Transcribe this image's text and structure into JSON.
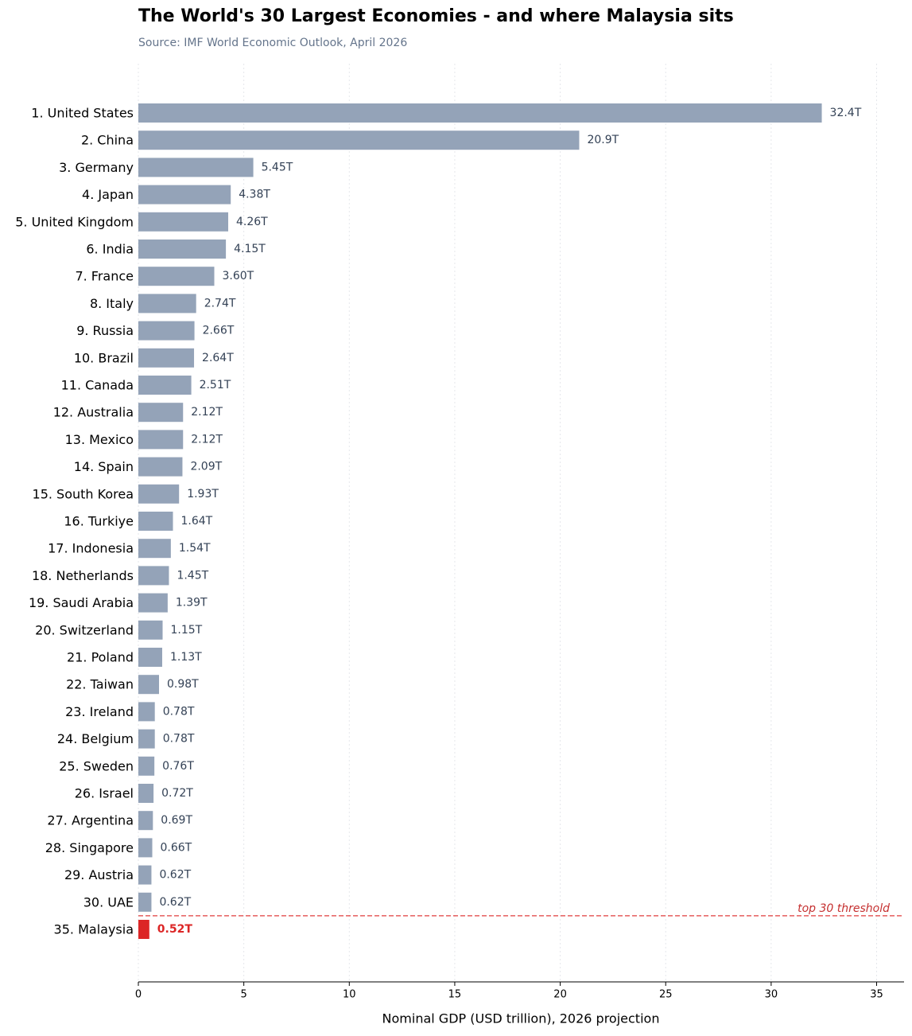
{
  "chart_data": {
    "type": "barh",
    "title": "The World's 30 Largest Economies - and where Malaysia sits",
    "subtitle": "Source: IMF World Economic Outlook, April 2026",
    "x_label": "Nominal GDP (USD trillion), 2026 projection",
    "annotation": "top 30 threshold",
    "categories": [
      "1. United States",
      "2. China",
      "3. Germany",
      "4. Japan",
      "5. United Kingdom",
      "6. India",
      "7. France",
      "8. Italy",
      "9. Russia",
      "10. Brazil",
      "11. Canada",
      "12. Australia",
      "13. Mexico",
      "14. Spain",
      "15. South Korea",
      "16. Turkiye",
      "17. Indonesia",
      "18. Netherlands",
      "19. Saudi Arabia",
      "20. Switzerland",
      "21. Poland",
      "22. Taiwan",
      "23. Ireland",
      "24. Belgium",
      "25. Sweden",
      "26. Israel",
      "27. Argentina",
      "28. Singapore",
      "29. Austria",
      "30. UAE",
      "35. Malaysia"
    ],
    "values": [
      32.4,
      20.9,
      5.45,
      4.38,
      4.26,
      4.15,
      3.6,
      2.74,
      2.66,
      2.64,
      2.51,
      2.12,
      2.12,
      2.09,
      1.93,
      1.64,
      1.54,
      1.45,
      1.39,
      1.15,
      1.13,
      0.98,
      0.78,
      0.78,
      0.76,
      0.72,
      0.69,
      0.66,
      0.62,
      0.62,
      0.52
    ],
    "value_labels": [
      "32.4T",
      "20.9T",
      "5.45T",
      "4.38T",
      "4.26T",
      "4.15T",
      "3.60T",
      "2.74T",
      "2.66T",
      "2.64T",
      "2.51T",
      "2.12T",
      "2.12T",
      "2.09T",
      "1.93T",
      "1.64T",
      "1.54T",
      "1.45T",
      "1.39T",
      "1.15T",
      "1.13T",
      "0.98T",
      "0.78T",
      "0.78T",
      "0.76T",
      "0.72T",
      "0.69T",
      "0.66T",
      "0.62T",
      "0.62T",
      "0.52T"
    ],
    "colors": [
      "#94a3b8",
      "#94a3b8",
      "#94a3b8",
      "#94a3b8",
      "#94a3b8",
      "#94a3b8",
      "#94a3b8",
      "#94a3b8",
      "#94a3b8",
      "#94a3b8",
      "#94a3b8",
      "#94a3b8",
      "#94a3b8",
      "#94a3b8",
      "#94a3b8",
      "#94a3b8",
      "#94a3b8",
      "#94a3b8",
      "#94a3b8",
      "#94a3b8",
      "#94a3b8",
      "#94a3b8",
      "#94a3b8",
      "#94a3b8",
      "#94a3b8",
      "#94a3b8",
      "#94a3b8",
      "#94a3b8",
      "#94a3b8",
      "#94a3b8",
      "#dc2626"
    ],
    "color": "#94a3b8",
    "xlim": [
      0,
      36.3
    ],
    "xticks": [
      0,
      5,
      10,
      15,
      20,
      25,
      30,
      35
    ],
    "grid": true
  }
}
